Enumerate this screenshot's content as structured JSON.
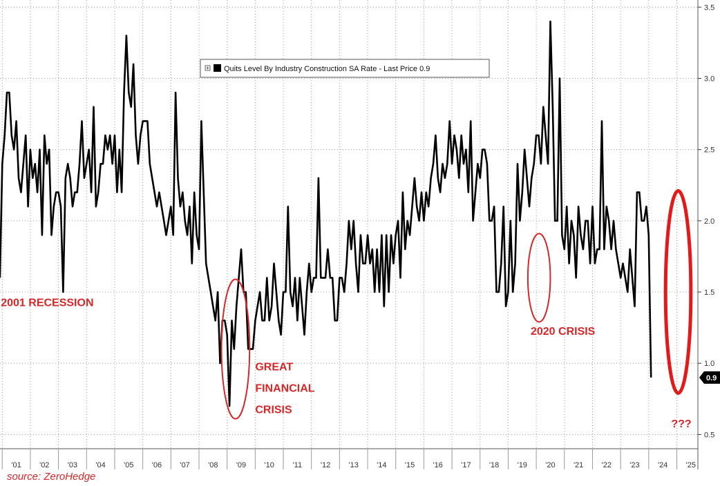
{
  "chart_data": {
    "type": "line",
    "legend": "Quits Level By Industry Construction SA Rate - Last Price 0.9",
    "legend_position": "top-center",
    "last_price_label": "0.9",
    "ylim": [
      0.4,
      3.55
    ],
    "yticks": [
      0.5,
      1.0,
      1.5,
      2.0,
      2.5,
      3.0,
      3.5
    ],
    "ytick_labels": [
      "0.5",
      "1.0",
      "1.5",
      "2.0",
      "2.5",
      "3.0",
      "3.5"
    ],
    "y_axis_side": "right",
    "xlim": [
      2000.92,
      2025.75
    ],
    "x_tick_labels": [
      "'01",
      "'02",
      "'03",
      "'04",
      "'05",
      "'06",
      "'07",
      "'08",
      "'09",
      "'10",
      "'11",
      "'12",
      "'13",
      "'14",
      "'15",
      "'16",
      "'17",
      "'18",
      "'19",
      "'20",
      "'21",
      "'22",
      "'23",
      "'24",
      "'25"
    ],
    "x_tick_years": [
      2001,
      2002,
      2003,
      2004,
      2005,
      2006,
      2007,
      2008,
      2009,
      2010,
      2011,
      2012,
      2013,
      2014,
      2015,
      2016,
      2017,
      2018,
      2019,
      2020,
      2021,
      2022,
      2023,
      2024,
      2025
    ],
    "grid": true,
    "series": [
      {
        "start": 2000.917,
        "step_months": 1,
        "line_color": "#000000",
        "values": [
          1.6,
          2.4,
          2.6,
          2.9,
          2.9,
          2.6,
          2.5,
          2.7,
          2.3,
          2.2,
          2.4,
          2.6,
          2.1,
          2.5,
          2.3,
          2.4,
          2.2,
          2.5,
          1.9,
          2.6,
          2.4,
          2.5,
          1.9,
          2.1,
          2.2,
          2.2,
          2.1,
          1.5,
          2.3,
          2.4,
          2.3,
          2.1,
          2.2,
          2.2,
          2.4,
          2.7,
          2.3,
          2.4,
          2.5,
          2.2,
          2.8,
          2.1,
          2.2,
          2.4,
          2.4,
          2.6,
          2.5,
          2.6,
          2.4,
          2.6,
          2.2,
          2.5,
          2.2,
          2.9,
          3.3,
          2.9,
          2.8,
          3.1,
          2.6,
          2.4,
          2.6,
          2.7,
          2.7,
          2.7,
          2.4,
          2.3,
          2.2,
          2.1,
          2.2,
          2.1,
          2.0,
          1.9,
          2.0,
          2.1,
          1.9,
          2.9,
          2.3,
          2.1,
          2.2,
          2.0,
          1.9,
          2.1,
          1.7,
          2.2,
          1.9,
          1.8,
          2.7,
          2.2,
          1.7,
          1.6,
          1.5,
          1.4,
          1.3,
          1.5,
          1.0,
          1.3,
          1.3,
          1.2,
          0.7,
          1.3,
          1.1,
          1.4,
          1.6,
          1.8,
          1.5,
          1.5,
          1.1,
          1.1,
          1.1,
          1.3,
          1.4,
          1.5,
          1.3,
          1.3,
          1.6,
          1.3,
          1.4,
          1.7,
          1.5,
          1.3,
          1.2,
          1.5,
          1.5,
          2.1,
          1.5,
          1.4,
          1.6,
          1.3,
          1.6,
          1.4,
          1.2,
          1.5,
          1.7,
          1.5,
          1.6,
          1.6,
          2.3,
          1.6,
          1.6,
          1.6,
          1.8,
          1.6,
          1.6,
          1.3,
          1.3,
          1.6,
          1.6,
          1.5,
          1.7,
          2.0,
          1.8,
          2.0,
          1.7,
          1.5,
          1.9,
          1.7,
          1.7,
          1.9,
          1.7,
          1.8,
          1.5,
          1.8,
          1.5,
          1.9,
          1.4,
          1.9,
          1.5,
          1.9,
          1.7,
          1.9,
          2.0,
          1.6,
          2.2,
          1.8,
          2.0,
          1.9,
          2.1,
          2.3,
          2.1,
          2.0,
          2.2,
          2.0,
          2.2,
          2.1,
          2.3,
          2.4,
          2.6,
          2.3,
          2.2,
          2.4,
          2.3,
          2.4,
          2.7,
          2.4,
          2.6,
          2.5,
          2.3,
          2.6,
          2.4,
          2.5,
          2.2,
          2.7,
          2.0,
          2.2,
          2.4,
          2.3,
          2.5,
          2.5,
          2.4,
          2.0,
          2.0,
          2.1,
          1.5,
          1.5,
          1.7,
          2.1,
          1.4,
          1.5,
          2.0,
          1.5,
          1.7,
          2.4,
          2.0,
          2.2,
          2.5,
          2.3,
          2.1,
          2.3,
          2.4,
          2.6,
          2.6,
          2.4,
          2.8,
          2.6,
          2.4,
          3.4,
          2.8,
          2.0,
          2.0,
          3.0,
          1.9,
          1.8,
          2.1,
          1.7,
          2.0,
          1.9,
          1.6,
          2.1,
          1.9,
          1.8,
          2.0,
          2.0,
          1.7,
          2.1,
          1.7,
          1.8,
          1.8,
          2.7,
          1.8,
          2.1,
          2.0,
          1.8,
          2.0,
          1.8,
          1.7,
          1.6,
          1.7,
          1.6,
          1.5,
          1.8,
          1.6,
          1.4,
          2.2,
          2.2,
          2.0,
          2.0,
          2.1,
          1.9,
          0.9
        ]
      }
    ],
    "annotations": [
      {
        "text": "2001 RECESSION",
        "x": 2000.95,
        "y": 1.4
      },
      {
        "text": "GREAT",
        "x": 2010.0,
        "y": 0.95
      },
      {
        "text": "FINANCIAL",
        "x": 2010.0,
        "y": 0.8
      },
      {
        "text": "CRISIS",
        "x": 2010.0,
        "y": 0.65
      },
      {
        "text": "2020 CRISIS",
        "x": 2019.8,
        "y": 1.2
      },
      {
        "text": "???",
        "x": 2024.8,
        "y": 0.55
      }
    ],
    "highlights": [
      {
        "cx": 2009.3,
        "cy": 1.1,
        "rx_years": 0.5,
        "ry": 0.49,
        "color": "#d62728"
      },
      {
        "cx": 2020.1,
        "cy": 1.6,
        "rx_years": 0.4,
        "ry": 0.31,
        "color": "#d62728"
      },
      {
        "cx": 2025.05,
        "cy": 1.5,
        "rx_years": 0.45,
        "ry": 0.71,
        "color": "#e21a1a"
      }
    ]
  },
  "source": "source: ZeroHedge"
}
